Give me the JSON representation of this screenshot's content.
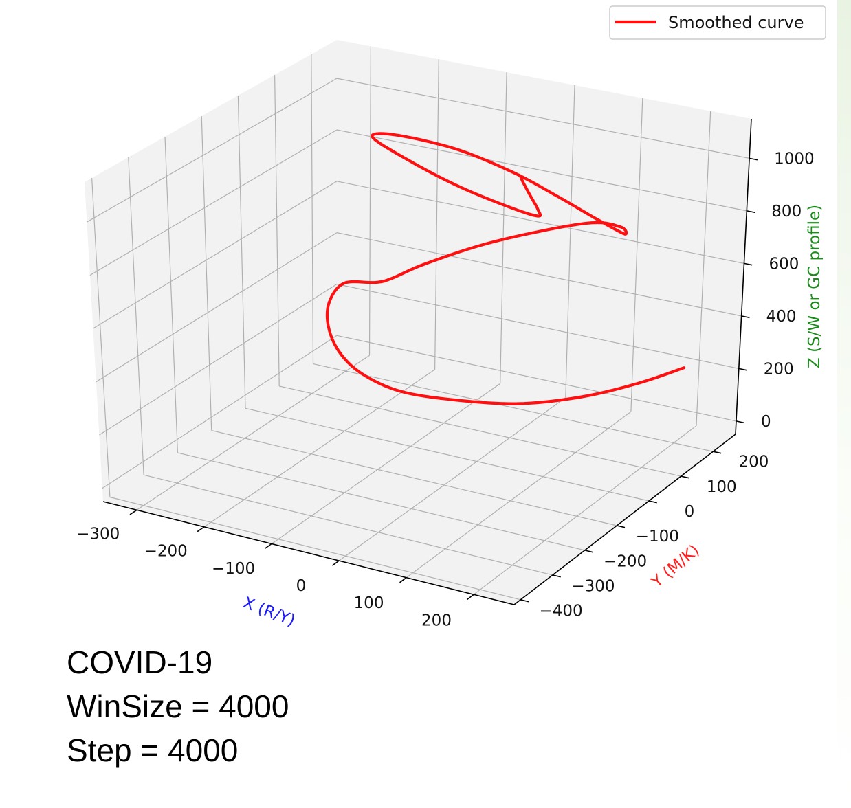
{
  "caption": {
    "line1": "COVID-19",
    "line2": "WinSize = 4000",
    "line3": "Step = 4000"
  },
  "colors": {
    "curve": "#ff1010",
    "x_label": "#1a1aff",
    "y_label": "#ff2020",
    "z_label": "#1a8a1a",
    "pane": "#f2f2f2"
  },
  "chart_data": {
    "type": "line",
    "projection": "3d",
    "title": "",
    "legend": {
      "entries": [
        "Smoothed curve"
      ],
      "placement": "top-right"
    },
    "grid": true,
    "xlabel": "X (R/Y)",
    "ylabel": "Y (M/K)",
    "zlabel": "Z (S/W or GC profile)",
    "xlim": [
      -350,
      260
    ],
    "ylim": [
      -420,
      270
    ],
    "zlim": [
      -50,
      1150
    ],
    "xticks": [
      -300,
      -200,
      -100,
      0,
      100,
      200
    ],
    "yticks": [
      -400,
      -300,
      -200,
      -100,
      0,
      100,
      200
    ],
    "zticks": [
      0,
      200,
      400,
      600,
      800,
      1000
    ],
    "x_tick_labels": [
      "−300",
      "−200",
      "−100",
      "0",
      "100",
      "200"
    ],
    "y_tick_labels": [
      "−400",
      "−300",
      "−200",
      "−100",
      "0",
      "100",
      "200"
    ],
    "z_tick_labels": [
      "0",
      "200",
      "400",
      "600",
      "800",
      "1000"
    ],
    "series": [
      {
        "name": "Smoothed curve",
        "x": [
          240,
          180,
          110,
          35,
          -40,
          -95,
          -125,
          -130,
          -120,
          -95,
          -55,
          0,
          20,
          50,
          120,
          210,
          230,
          215,
          150,
          60,
          -30,
          -130,
          -210,
          -220,
          -150,
          -50,
          30,
          70,
          55,
          25,
          5,
          0
        ],
        "y": [
          140,
          120,
          90,
          50,
          10,
          -40,
          -90,
          -140,
          -185,
          -225,
          -255,
          -270,
          -260,
          -220,
          -150,
          -60,
          0,
          40,
          90,
          150,
          200,
          230,
          210,
          160,
          110,
          70,
          60,
          70,
          100,
          135,
          155,
          160
        ],
        "z": [
          360,
          280,
          210,
          170,
          170,
          210,
          300,
          420,
          560,
          700,
          820,
          870,
          890,
          930,
          1000,
          1050,
          1000,
          930,
          900,
          880,
          870,
          870,
          890,
          920,
          930,
          920,
          900,
          880,
          870,
          880,
          900,
          910
        ]
      }
    ]
  }
}
